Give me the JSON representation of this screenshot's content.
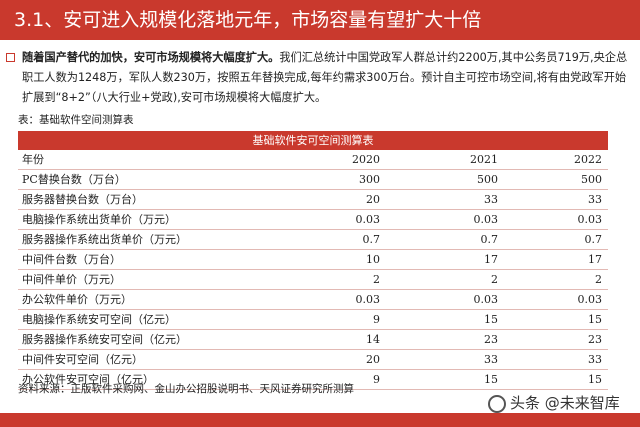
{
  "header": {
    "title": "3.1、安可进入规模化落地元年，市场容量有望扩大十倍"
  },
  "paragraph": {
    "bold": "随着国产替代的加快，安可市场规模将大幅度扩大。",
    "text": "我们汇总统计中国党政军人群总计约2200万,其中公务员719万,央企总职工人数为1248万，军队人数230万，按照五年替换完成,每年约需求300万台。预计自主可控市场空间,将有由党政军开始扩展到“8+2”（八大行业+党政),安可市场规模将大幅度扩大。"
  },
  "table_caption": "表：基础软件空间测算表",
  "table": {
    "title": "基础软件安可空间测算表",
    "header": {
      "label": "年份",
      "y1": "2020",
      "y2": "2021",
      "y3": "2022"
    },
    "rows": [
      {
        "label": "PC替换台数（万台）",
        "v1": "300",
        "v2": "500",
        "v3": "500"
      },
      {
        "label": "服务器替换台数（万台）",
        "v1": "20",
        "v2": "33",
        "v3": "33"
      },
      {
        "label": "电脑操作系统出货单价（万元）",
        "v1": "0.03",
        "v2": "0.03",
        "v3": "0.03"
      },
      {
        "label": "服务器操作系统出货单价（万元）",
        "v1": "0.7",
        "v2": "0.7",
        "v3": "0.7"
      },
      {
        "label": "中间件台数（万台）",
        "v1": "10",
        "v2": "17",
        "v3": "17"
      },
      {
        "label": "中间件单价（万元）",
        "v1": "2",
        "v2": "2",
        "v3": "2"
      },
      {
        "label": "办公软件单价（万元）",
        "v1": "0.03",
        "v2": "0.03",
        "v3": "0.03"
      },
      {
        "label": "电脑操作系统安可空间（亿元）",
        "v1": "9",
        "v2": "15",
        "v3": "15"
      },
      {
        "label": "服务器操作系统安可空间（亿元）",
        "v1": "14",
        "v2": "23",
        "v3": "23"
      },
      {
        "label": "中间件安可空间（亿元）",
        "v1": "20",
        "v2": "33",
        "v3": "33"
      },
      {
        "label": "办公软件安可空间（亿元）",
        "v1": "9",
        "v2": "15",
        "v3": "15"
      }
    ]
  },
  "source": "资料来源：正版软件采购网、金山办公招股说明书、天风证券研究所测算",
  "watermark": "头条 @未来智库"
}
